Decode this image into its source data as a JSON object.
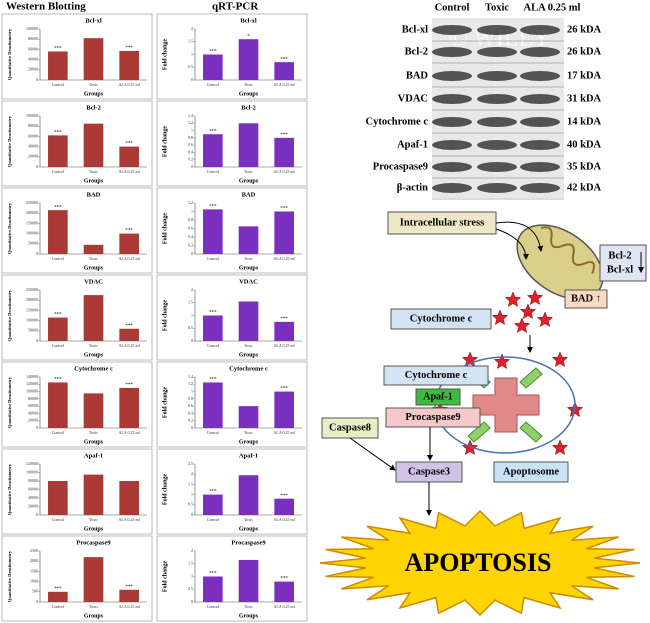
{
  "headings": {
    "western": "Western Blotting",
    "qrt": "qRT-PCR"
  },
  "chart_data": [
    {
      "type": "bar",
      "title": "Bcl-xl",
      "x_label": "Groups",
      "y_label": "Quantitative Densitometry",
      "categories": [
        "Control",
        "Toxic",
        "ALA 0.25 ml"
      ],
      "values": [
        56000,
        82000,
        57000
      ],
      "sig_labels": [
        "***",
        null,
        "***"
      ],
      "color": "#a93a35",
      "ylim": [
        0,
        100000
      ],
      "yticks": [
        0,
        20000,
        40000,
        60000,
        80000,
        100000
      ]
    },
    {
      "type": "bar",
      "title": "Bcl-2",
      "x_label": "Groups",
      "y_label": "Quantitative Densitometry",
      "categories": [
        "Control",
        "Toxic",
        "ALA 0.25 ml"
      ],
      "values": [
        62000,
        85000,
        40000
      ],
      "sig_labels": [
        "***",
        null,
        "***"
      ],
      "color": "#a93a35",
      "ylim": [
        0,
        100000
      ],
      "yticks": [
        0,
        20000,
        40000,
        60000,
        80000,
        100000
      ]
    },
    {
      "type": "bar",
      "title": "BAD",
      "x_label": "Groups",
      "y_label": "Quantitative Densitometry",
      "categories": [
        "Control",
        "Toxic",
        "ALA 0.25 ml"
      ],
      "values": [
        215000,
        45000,
        100000
      ],
      "sig_labels": [
        "***",
        null,
        "***"
      ],
      "color": "#a93a35",
      "ylim": [
        0,
        250000
      ],
      "yticks": [
        0,
        50000,
        100000,
        150000,
        200000,
        250000
      ]
    },
    {
      "type": "bar",
      "title": "VDAC",
      "x_label": "Groups",
      "y_label": "Quantitative Densitometry",
      "categories": [
        "Control",
        "Toxic",
        "ALA 0.25 ml"
      ],
      "values": [
        115000,
        225000,
        60000
      ],
      "sig_labels": [
        "***",
        null,
        "***"
      ],
      "color": "#a93a35",
      "ylim": [
        0,
        250000
      ],
      "yticks": [
        0,
        50000,
        100000,
        150000,
        200000,
        250000
      ]
    },
    {
      "type": "bar",
      "title": "Cytochrome c",
      "x_label": "Groups",
      "y_label": "Quantitative Densitometry",
      "categories": [
        "Control",
        "Toxic",
        "ALA 0.25 ml"
      ],
      "values": [
        125000,
        95000,
        110000
      ],
      "sig_labels": [
        "***",
        null,
        "***"
      ],
      "color": "#a93a35",
      "ylim": [
        0,
        140000
      ],
      "yticks": [
        0,
        20000,
        40000,
        60000,
        80000,
        100000,
        120000,
        140000
      ]
    },
    {
      "type": "bar",
      "title": "Apaf-1",
      "x_label": "Groups",
      "y_label": "Quantitative Densitometry",
      "categories": [
        "Control",
        "Toxic",
        "ALA 0.25 ml"
      ],
      "values": [
        80000,
        95000,
        80000
      ],
      "sig_labels": [
        null,
        null,
        null
      ],
      "color": "#a93a35",
      "ylim": [
        0,
        120000
      ],
      "yticks": [
        0,
        20000,
        40000,
        60000,
        80000,
        100000,
        120000
      ]
    },
    {
      "type": "bar",
      "title": "Procaspase9",
      "x_label": "Groups",
      "y_label": "Quantitative Densitometry",
      "categories": [
        "Control",
        "Toxic",
        "ALA 0.25 ml"
      ],
      "values": [
        500,
        2200,
        600
      ],
      "sig_labels": [
        "***",
        null,
        "***"
      ],
      "color": "#a93a35",
      "ylim": [
        0,
        2500
      ],
      "yticks": [
        0,
        500,
        1000,
        1500,
        2000,
        2500
      ]
    },
    {
      "type": "bar",
      "title": "Bcl-xl",
      "x_label": "Groups",
      "y_label": "Fold change",
      "categories": [
        "Control",
        "Toxic",
        "ALA 0.25 ml"
      ],
      "values": [
        1,
        1.6,
        0.7
      ],
      "sig_labels": [
        "***",
        "*",
        "***"
      ],
      "color": "#7b2fbe",
      "ylim": [
        0,
        2
      ],
      "yticks": [
        0,
        0.5,
        1,
        1.5,
        2
      ]
    },
    {
      "type": "bar",
      "title": "Bcl-2",
      "x_label": "Groups",
      "y_label": "Fold change",
      "categories": [
        "Control",
        "Toxic",
        "ALA 0.25 ml"
      ],
      "values": [
        0.9,
        1.2,
        0.8
      ],
      "sig_labels": [
        "***",
        null,
        "***"
      ],
      "color": "#7b2fbe",
      "ylim": [
        0,
        1.4
      ],
      "yticks": [
        0,
        0.2,
        0.4,
        0.6,
        0.8,
        1,
        1.2,
        1.4
      ]
    },
    {
      "type": "bar",
      "title": "BAD",
      "x_label": "Groups",
      "y_label": "Fold change",
      "categories": [
        "Control",
        "Toxic",
        "ALA 0.25 ml"
      ],
      "values": [
        1.05,
        0.65,
        1
      ],
      "sig_labels": [
        "***",
        null,
        "***"
      ],
      "color": "#7b2fbe",
      "ylim": [
        0,
        1.2
      ],
      "yticks": [
        0,
        0.2,
        0.4,
        0.6,
        0.8,
        1,
        1.2
      ]
    },
    {
      "type": "bar",
      "title": "VDAC",
      "x_label": "Groups",
      "y_label": "Fold change",
      "categories": [
        "Control",
        "Toxic",
        "ALA 0.25 ml"
      ],
      "values": [
        1,
        1.55,
        0.75
      ],
      "sig_labels": [
        "***",
        null,
        "***"
      ],
      "color": "#7b2fbe",
      "ylim": [
        0,
        2
      ],
      "yticks": [
        0,
        0.5,
        1,
        1.5,
        2
      ]
    },
    {
      "type": "bar",
      "title": "Cytochrome c",
      "x_label": "Groups",
      "y_label": "Fold change",
      "categories": [
        "Control",
        "Toxic",
        "ALA 0.25 ml"
      ],
      "values": [
        1.25,
        0.6,
        1
      ],
      "sig_labels": [
        "***",
        null,
        "***"
      ],
      "color": "#7b2fbe",
      "ylim": [
        0,
        1.4
      ],
      "yticks": [
        0,
        0.2,
        0.4,
        0.6,
        0.8,
        1,
        1.2,
        1.4
      ]
    },
    {
      "type": "bar",
      "title": "Apaf-1",
      "x_label": "Groups",
      "y_label": "Fold change",
      "categories": [
        "Control",
        "Toxic",
        "ALA 0.25 ml"
      ],
      "values": [
        1,
        1.95,
        0.8
      ],
      "sig_labels": [
        "***",
        null,
        "***"
      ],
      "color": "#7b2fbe",
      "ylim": [
        0,
        2.5
      ],
      "yticks": [
        0,
        0.5,
        1,
        1.5,
        2,
        2.5
      ]
    },
    {
      "type": "bar",
      "title": "Procaspase9",
      "x_label": "Groups",
      "y_label": "Fold change",
      "categories": [
        "Control",
        "Toxic",
        "ALA 0.25 ml"
      ],
      "values": [
        1,
        1.65,
        0.8
      ],
      "sig_labels": [
        "***",
        null,
        "***"
      ],
      "color": "#7b2fbe",
      "ylim": [
        0,
        2
      ],
      "yticks": [
        0,
        0.5,
        1,
        1.5,
        2
      ]
    }
  ],
  "blot": {
    "columns": [
      "Control",
      "Toxic",
      "ALA 0.25 ml"
    ],
    "watermark": "© WILEY",
    "rows": [
      {
        "protein": "Bcl-xl",
        "size": "26 kDA"
      },
      {
        "protein": "Bcl-2",
        "size": "26 kDA"
      },
      {
        "protein": "BAD",
        "size": "17 kDA"
      },
      {
        "protein": "VDAC",
        "size": "31 kDA"
      },
      {
        "protein": "Cytochrome c",
        "size": "14 kDA"
      },
      {
        "protein": "Apaf-1",
        "size": "40 kDA"
      },
      {
        "protein": "Procaspase9",
        "size": "35 kDA"
      },
      {
        "protein": "β-actin",
        "size": "42 kDA"
      }
    ]
  },
  "diagram": {
    "stress": "Intracellular stress",
    "bcl2": "Bcl-2",
    "bclxl": "Bcl-xl",
    "bad": "BAD ↑",
    "cytc_released": "Cytochrome c",
    "cytc": "Cytochrome c",
    "apaf": "Apaf-1",
    "procasp9": "Procaspase9",
    "caspase8": "Caspase8",
    "caspase3": "Caspase3",
    "apoptosome": "Apoptosome",
    "outcome": "APOPTOSIS"
  }
}
